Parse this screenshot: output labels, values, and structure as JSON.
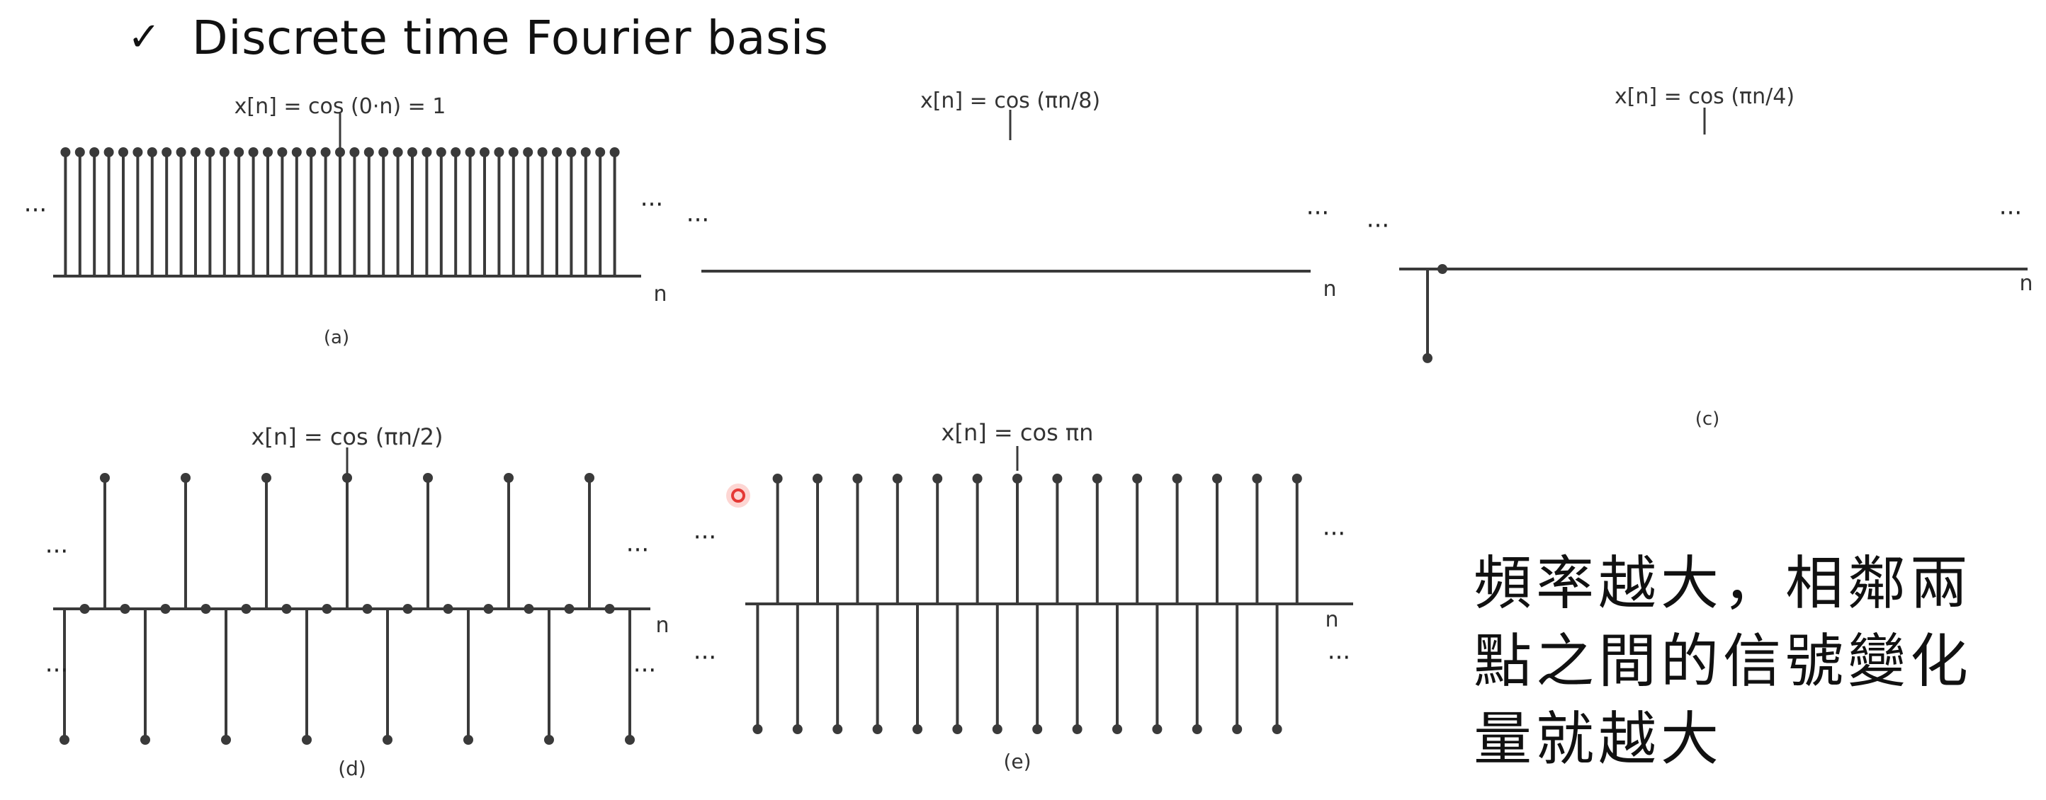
{
  "header": {
    "icon": "check-mark-icon",
    "title": "Discrete time Fourier basis"
  },
  "panels": [
    {
      "id": "a",
      "label": "(a)",
      "formula": "x[n] = cos (0·n) = 1",
      "axis_label": "n",
      "dots": "···",
      "omega_over_pi": 0
    },
    {
      "id": "b",
      "label": "",
      "formula": "x[n] = cos (πn/8)",
      "axis_label": "n",
      "dots": "···",
      "omega_over_pi": 0.125
    },
    {
      "id": "c",
      "label": "(c)",
      "formula": "x[n] = cos (πn/4)",
      "axis_label": "n",
      "dots": "···",
      "omega_over_pi": 0.25
    },
    {
      "id": "d",
      "label": "(d)",
      "formula": "x[n] = cos (πn/2)",
      "axis_label": "n",
      "dots": "···",
      "omega_over_pi": 0.5
    },
    {
      "id": "e",
      "label": "(e)",
      "formula": "x[n] = cos πn",
      "axis_label": "n",
      "dots": "···",
      "omega_over_pi": 1
    }
  ],
  "note": {
    "lines": [
      "頻率越大，相鄰兩",
      "點之間的信號變化",
      "量就越大"
    ]
  },
  "colors": {
    "ink": "#3a3a3a",
    "text": "#111111",
    "pointer": "#e53935"
  },
  "pointer_icon": "red-pointer-dot-icon"
}
